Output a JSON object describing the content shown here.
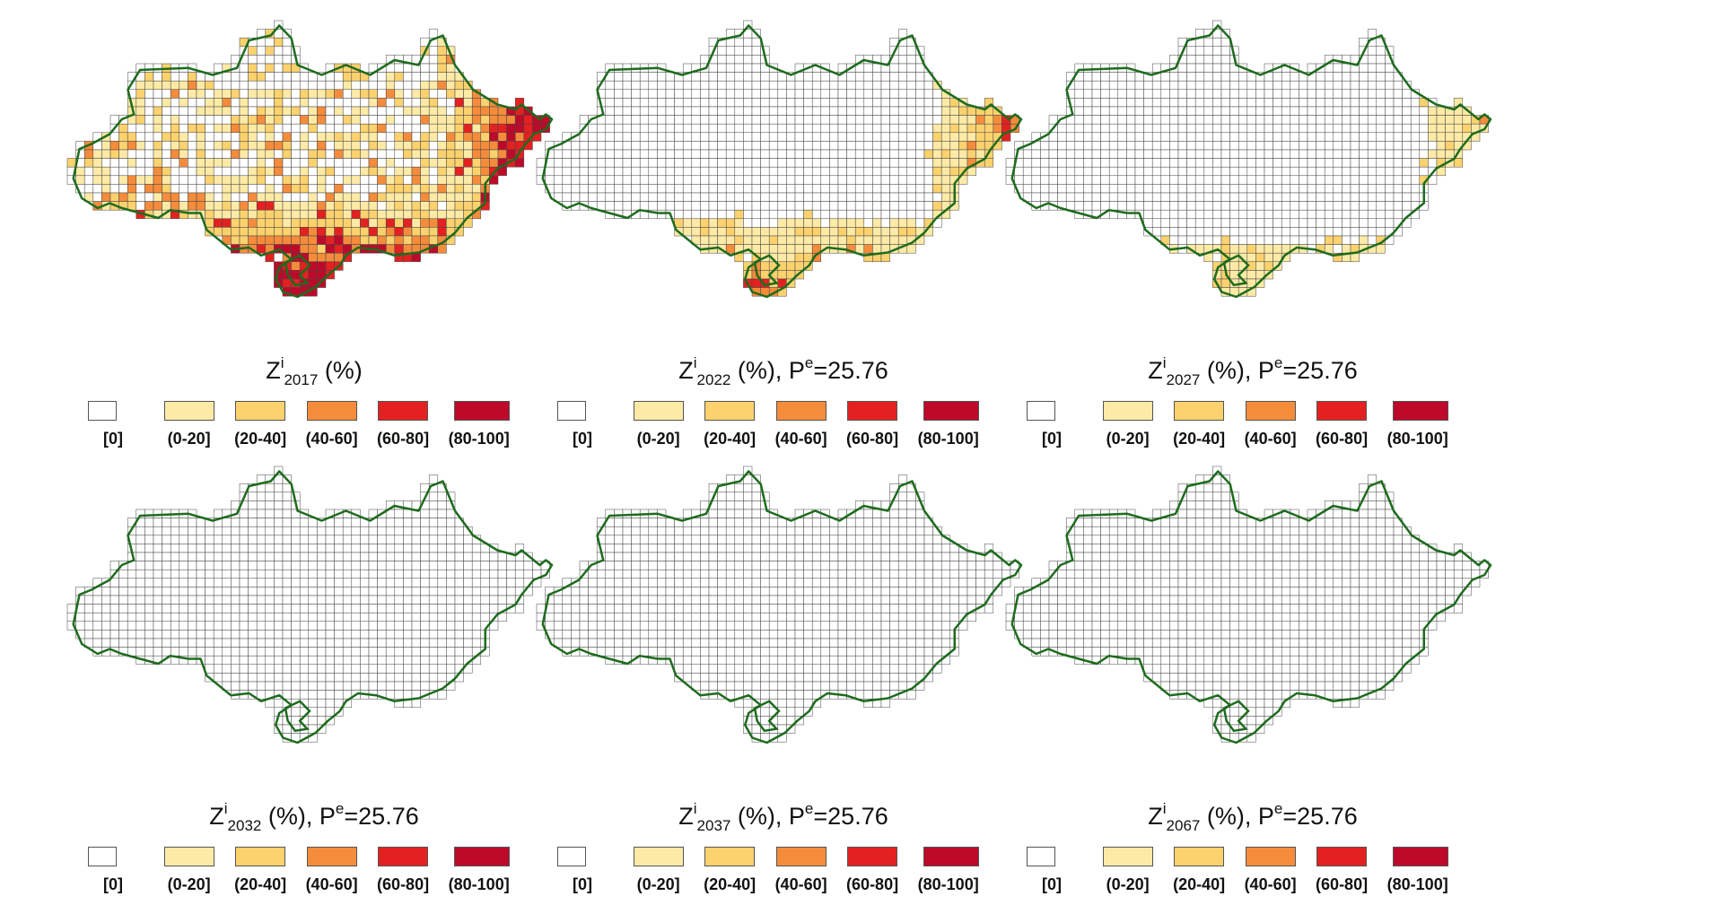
{
  "legend": {
    "classes": [
      {
        "label": "[0]",
        "color": "#ffffff"
      },
      {
        "label": "(0-20]",
        "color": "#fdeaa6"
      },
      {
        "label": "(20-40]",
        "color": "#fcd26e"
      },
      {
        "label": "(40-60]",
        "color": "#f58c3c"
      },
      {
        "label": "(60-80]",
        "color": "#e32121"
      },
      {
        "label": "(80-100]",
        "color": "#bd0a2a"
      }
    ]
  },
  "boundary_color": "#1e6b1e",
  "panels": [
    {
      "var": "Z",
      "sup": "i",
      "year": "2017",
      "unit": "(%)",
      "pe_label": "",
      "pe_sup": "",
      "pe_value": "",
      "intensity": "high"
    },
    {
      "var": "Z",
      "sup": "i",
      "year": "2022",
      "unit": "(%),",
      "pe_label": "P",
      "pe_sup": "e",
      "pe_value": "=25.76",
      "intensity": "medium"
    },
    {
      "var": "Z",
      "sup": "i",
      "year": "2027",
      "unit": "(%),",
      "pe_label": "P",
      "pe_sup": "e",
      "pe_value": "=25.76",
      "intensity": "low"
    },
    {
      "var": "Z",
      "sup": "i",
      "year": "2032",
      "unit": "(%),",
      "pe_label": "P",
      "pe_sup": "e",
      "pe_value": "=25.76",
      "intensity": "very-low"
    },
    {
      "var": "Z",
      "sup": "i",
      "year": "2037",
      "unit": "(%),",
      "pe_label": "P",
      "pe_sup": "e",
      "pe_value": "=25.76",
      "intensity": "minimal"
    },
    {
      "var": "Z",
      "sup": "i",
      "year": "2067",
      "unit": "(%),",
      "pe_label": "P",
      "pe_sup": "e",
      "pe_value": "=25.76",
      "intensity": "none"
    }
  ]
}
